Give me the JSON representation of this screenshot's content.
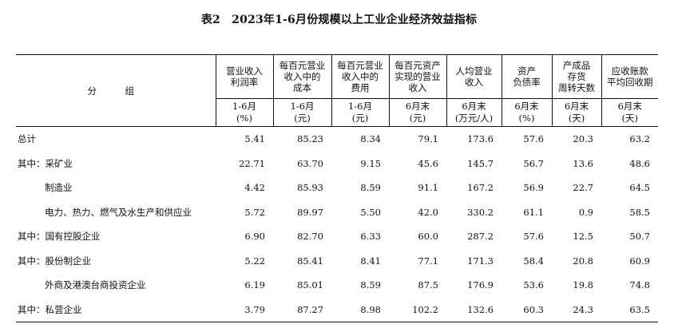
{
  "title": "表2　2023年1-6月份规模以上工业企业经济效益指标",
  "header": {
    "group_label": "分　组",
    "columns": [
      {
        "name": "营业收入\n利润率",
        "period": "1-6月",
        "unit": "(%)"
      },
      {
        "name": "每百元营业\n收入中的\n成本",
        "period": "1-6月",
        "unit": "(元)"
      },
      {
        "name": "每百元营业\n收入中的\n费用",
        "period": "1-6月",
        "unit": "(元)"
      },
      {
        "name": "每百元资产\n实现的营业\n收入",
        "period": "6月末",
        "unit": "(元)"
      },
      {
        "name": "人均营业\n收入",
        "period": "6月末",
        "unit": "(万元/人)"
      },
      {
        "name": "资产\n负债率",
        "period": "6月末",
        "unit": "(%)"
      },
      {
        "name": "产成品\n存货\n周转天数",
        "period": "6月末",
        "unit": "(天)"
      },
      {
        "name": "应收账款\n平均回收期",
        "period": "6月末",
        "unit": "(天)"
      }
    ]
  },
  "rows": [
    {
      "label": "总计",
      "indent": false,
      "values": [
        "5.41",
        "85.23",
        "8.34",
        "79.1",
        "173.6",
        "57.6",
        "20.3",
        "63.2"
      ]
    },
    {
      "label": "其中：采矿业",
      "indent": false,
      "values": [
        "22.71",
        "63.70",
        "9.15",
        "45.6",
        "145.7",
        "56.7",
        "13.6",
        "48.6"
      ]
    },
    {
      "label": "制造业",
      "indent": true,
      "values": [
        "4.42",
        "85.93",
        "8.59",
        "91.1",
        "167.2",
        "56.9",
        "22.7",
        "64.5"
      ]
    },
    {
      "label": "电力、热力、燃气及水生产和供应业",
      "indent": true,
      "values": [
        "5.72",
        "89.97",
        "5.50",
        "42.0",
        "330.2",
        "61.1",
        "0.9",
        "58.5"
      ]
    },
    {
      "label": "其中：国有控股企业",
      "indent": false,
      "values": [
        "6.90",
        "82.70",
        "6.33",
        "60.0",
        "287.2",
        "57.6",
        "12.5",
        "50.7"
      ]
    },
    {
      "label": "其中：股份制企业",
      "indent": false,
      "values": [
        "5.22",
        "85.41",
        "8.41",
        "77.1",
        "171.3",
        "58.4",
        "20.8",
        "60.9"
      ]
    },
    {
      "label": "外商及港澳台商投资企业",
      "indent": true,
      "values": [
        "6.19",
        "85.01",
        "8.59",
        "87.5",
        "176.9",
        "53.6",
        "19.8",
        "74.8"
      ]
    },
    {
      "label": "其中：私营企业",
      "indent": false,
      "values": [
        "3.79",
        "87.27",
        "8.98",
        "102.2",
        "132.6",
        "60.3",
        "24.3",
        "63.5"
      ]
    }
  ]
}
